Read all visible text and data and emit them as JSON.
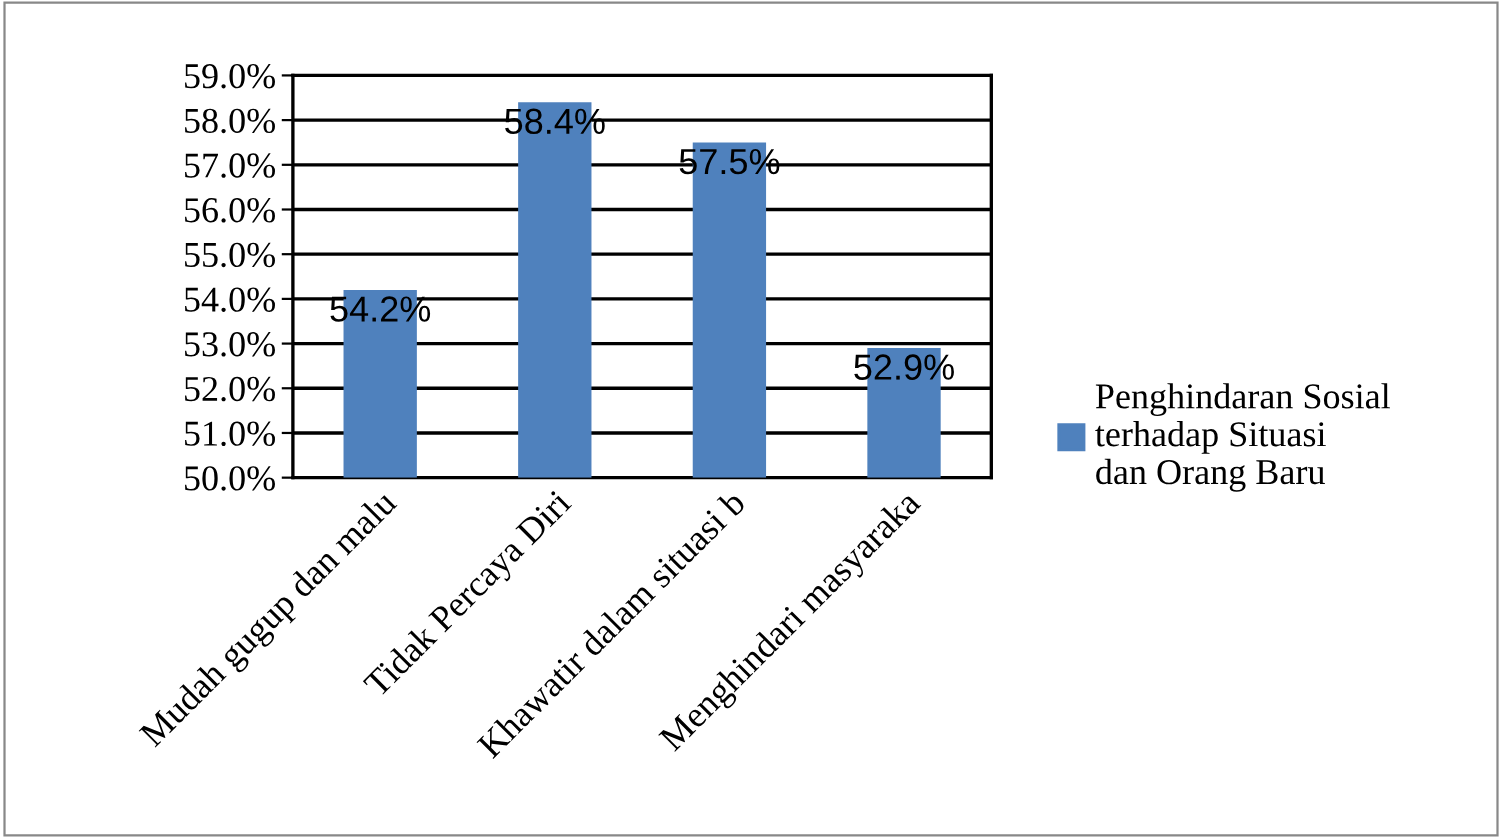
{
  "chart_data": {
    "type": "bar",
    "categories": [
      "Mudah gugup dan malu",
      "Tidak Percaya Diri",
      "Khawatir dalam situasi b",
      "Menghindari masyaraka"
    ],
    "series": [
      {
        "name": "Penghindaran Sosial terhadap Situasi dan Orang Baru",
        "color": "#4f81bd",
        "values": [
          54.2,
          58.4,
          57.5,
          52.9
        ],
        "value_labels": [
          "54.2%",
          "58.4%",
          "57.5%",
          "52.9%"
        ]
      }
    ],
    "ylim": [
      50,
      59
    ],
    "yticks": [
      {
        "value": 50,
        "label": "50.0%"
      },
      {
        "value": 51,
        "label": "51.0%"
      },
      {
        "value": 52,
        "label": "52.0%"
      },
      {
        "value": 53,
        "label": "53.0%"
      },
      {
        "value": 54,
        "label": "54.0%"
      },
      {
        "value": 55,
        "label": "55.0%"
      },
      {
        "value": 56,
        "label": "56.0%"
      },
      {
        "value": 57,
        "label": "57.0%"
      },
      {
        "value": 58,
        "label": "58.0%"
      },
      {
        "value": 59,
        "label": "59.0%"
      }
    ],
    "grid": "y",
    "legend": "right"
  }
}
